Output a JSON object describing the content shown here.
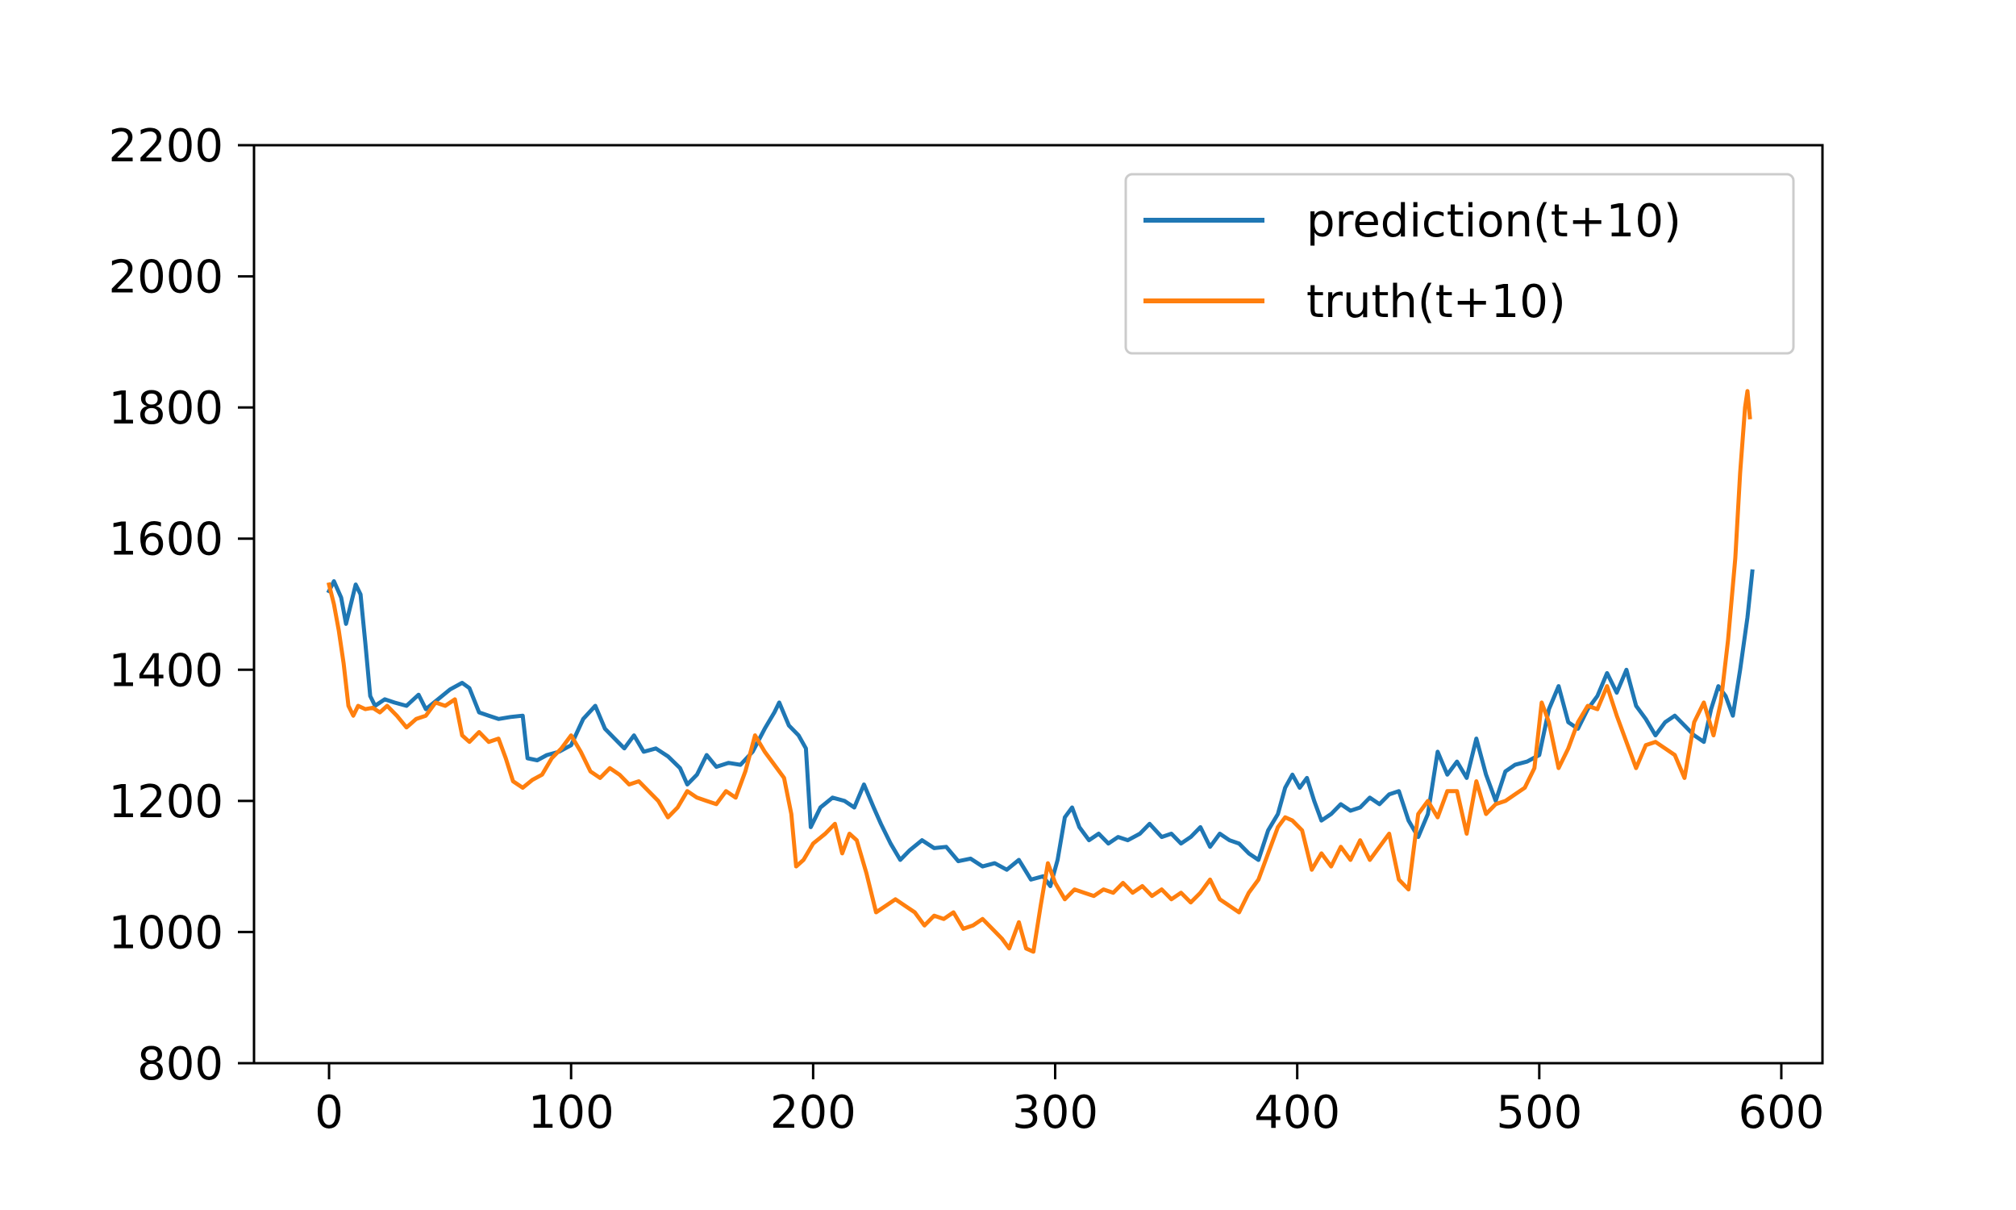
{
  "chart_data": {
    "type": "line",
    "title": "",
    "xlabel": "",
    "ylabel": "",
    "xlim": [
      -31,
      617
    ],
    "ylim": [
      800,
      2200
    ],
    "x_ticks": [
      0,
      100,
      200,
      300,
      400,
      500,
      600
    ],
    "y_ticks": [
      800,
      1000,
      1200,
      1400,
      1600,
      1800,
      2000,
      2200
    ],
    "x_tick_labels": [
      "0",
      "100",
      "200",
      "300",
      "400",
      "500",
      "600"
    ],
    "y_tick_labels": [
      "800",
      "1000",
      "1200",
      "1400",
      "1600",
      "1800",
      "2000",
      "2200"
    ],
    "grid": false,
    "legend_position": "top-right",
    "series": [
      {
        "name": "prediction(t+10)",
        "color": "#1f77b4",
        "points": [
          [
            0,
            1520
          ],
          [
            2,
            1535
          ],
          [
            5,
            1510
          ],
          [
            7,
            1470
          ],
          [
            9,
            1500
          ],
          [
            11,
            1530
          ],
          [
            13,
            1515
          ],
          [
            15,
            1440
          ],
          [
            17,
            1360
          ],
          [
            19,
            1345
          ],
          [
            23,
            1355
          ],
          [
            27,
            1350
          ],
          [
            32,
            1345
          ],
          [
            37,
            1362
          ],
          [
            40,
            1340
          ],
          [
            45,
            1355
          ],
          [
            50,
            1370
          ],
          [
            55,
            1380
          ],
          [
            58,
            1372
          ],
          [
            62,
            1335
          ],
          [
            66,
            1330
          ],
          [
            70,
            1325
          ],
          [
            75,
            1328
          ],
          [
            80,
            1330
          ],
          [
            82,
            1265
          ],
          [
            86,
            1262
          ],
          [
            90,
            1270
          ],
          [
            95,
            1275
          ],
          [
            100,
            1285
          ],
          [
            105,
            1325
          ],
          [
            110,
            1345
          ],
          [
            114,
            1310
          ],
          [
            118,
            1295
          ],
          [
            122,
            1280
          ],
          [
            126,
            1300
          ],
          [
            130,
            1275
          ],
          [
            135,
            1280
          ],
          [
            140,
            1268
          ],
          [
            145,
            1250
          ],
          [
            148,
            1225
          ],
          [
            152,
            1240
          ],
          [
            156,
            1270
          ],
          [
            160,
            1252
          ],
          [
            165,
            1258
          ],
          [
            170,
            1255
          ],
          [
            175,
            1275
          ],
          [
            180,
            1310
          ],
          [
            184,
            1335
          ],
          [
            186,
            1350
          ],
          [
            190,
            1315
          ],
          [
            194,
            1300
          ],
          [
            197,
            1280
          ],
          [
            199,
            1160
          ],
          [
            203,
            1190
          ],
          [
            208,
            1205
          ],
          [
            213,
            1200
          ],
          [
            217,
            1190
          ],
          [
            221,
            1225
          ],
          [
            225,
            1190
          ],
          [
            228,
            1165
          ],
          [
            232,
            1135
          ],
          [
            236,
            1110
          ],
          [
            240,
            1125
          ],
          [
            245,
            1140
          ],
          [
            250,
            1128
          ],
          [
            255,
            1130
          ],
          [
            260,
            1108
          ],
          [
            265,
            1112
          ],
          [
            270,
            1100
          ],
          [
            275,
            1105
          ],
          [
            280,
            1095
          ],
          [
            285,
            1110
          ],
          [
            290,
            1080
          ],
          [
            295,
            1085
          ],
          [
            298,
            1070
          ],
          [
            301,
            1110
          ],
          [
            304,
            1175
          ],
          [
            307,
            1190
          ],
          [
            310,
            1160
          ],
          [
            314,
            1140
          ],
          [
            318,
            1150
          ],
          [
            322,
            1135
          ],
          [
            326,
            1145
          ],
          [
            330,
            1140
          ],
          [
            335,
            1150
          ],
          [
            339,
            1165
          ],
          [
            344,
            1145
          ],
          [
            348,
            1150
          ],
          [
            352,
            1135
          ],
          [
            356,
            1145
          ],
          [
            360,
            1160
          ],
          [
            364,
            1130
          ],
          [
            368,
            1150
          ],
          [
            372,
            1140
          ],
          [
            376,
            1135
          ],
          [
            380,
            1120
          ],
          [
            384,
            1110
          ],
          [
            388,
            1155
          ],
          [
            392,
            1180
          ],
          [
            395,
            1220
          ],
          [
            398,
            1240
          ],
          [
            401,
            1220
          ],
          [
            404,
            1235
          ],
          [
            407,
            1200
          ],
          [
            410,
            1170
          ],
          [
            414,
            1180
          ],
          [
            418,
            1195
          ],
          [
            422,
            1185
          ],
          [
            426,
            1190
          ],
          [
            430,
            1205
          ],
          [
            434,
            1195
          ],
          [
            438,
            1210
          ],
          [
            442,
            1215
          ],
          [
            446,
            1170
          ],
          [
            450,
            1145
          ],
          [
            454,
            1180
          ],
          [
            458,
            1275
          ],
          [
            462,
            1240
          ],
          [
            466,
            1260
          ],
          [
            470,
            1235
          ],
          [
            474,
            1295
          ],
          [
            478,
            1240
          ],
          [
            482,
            1200
          ],
          [
            486,
            1245
          ],
          [
            490,
            1255
          ],
          [
            495,
            1260
          ],
          [
            500,
            1270
          ],
          [
            504,
            1340
          ],
          [
            508,
            1375
          ],
          [
            512,
            1320
          ],
          [
            516,
            1310
          ],
          [
            520,
            1340
          ],
          [
            524,
            1360
          ],
          [
            528,
            1395
          ],
          [
            532,
            1365
          ],
          [
            536,
            1400
          ],
          [
            540,
            1345
          ],
          [
            544,
            1325
          ],
          [
            548,
            1300
          ],
          [
            552,
            1320
          ],
          [
            556,
            1330
          ],
          [
            560,
            1315
          ],
          [
            564,
            1300
          ],
          [
            568,
            1290
          ],
          [
            571,
            1340
          ],
          [
            574,
            1375
          ],
          [
            577,
            1360
          ],
          [
            580,
            1330
          ],
          [
            583,
            1400
          ],
          [
            586,
            1480
          ],
          [
            588,
            1550
          ]
        ]
      },
      {
        "name": "truth(t+10)",
        "color": "#ff7f0e",
        "points": [
          [
            0,
            1530
          ],
          [
            2,
            1500
          ],
          [
            4,
            1460
          ],
          [
            6,
            1410
          ],
          [
            8,
            1345
          ],
          [
            10,
            1330
          ],
          [
            12,
            1345
          ],
          [
            15,
            1340
          ],
          [
            18,
            1342
          ],
          [
            21,
            1335
          ],
          [
            24,
            1345
          ],
          [
            28,
            1330
          ],
          [
            32,
            1312
          ],
          [
            36,
            1325
          ],
          [
            40,
            1330
          ],
          [
            44,
            1350
          ],
          [
            48,
            1345
          ],
          [
            52,
            1355
          ],
          [
            55,
            1300
          ],
          [
            58,
            1290
          ],
          [
            62,
            1305
          ],
          [
            66,
            1290
          ],
          [
            70,
            1295
          ],
          [
            73,
            1265
          ],
          [
            76,
            1230
          ],
          [
            80,
            1220
          ],
          [
            84,
            1232
          ],
          [
            88,
            1240
          ],
          [
            92,
            1265
          ],
          [
            96,
            1280
          ],
          [
            100,
            1300
          ],
          [
            104,
            1275
          ],
          [
            108,
            1245
          ],
          [
            112,
            1235
          ],
          [
            116,
            1250
          ],
          [
            120,
            1240
          ],
          [
            124,
            1225
          ],
          [
            128,
            1230
          ],
          [
            132,
            1215
          ],
          [
            136,
            1200
          ],
          [
            140,
            1175
          ],
          [
            144,
            1190
          ],
          [
            148,
            1215
          ],
          [
            152,
            1205
          ],
          [
            156,
            1200
          ],
          [
            160,
            1195
          ],
          [
            164,
            1215
          ],
          [
            168,
            1205
          ],
          [
            172,
            1245
          ],
          [
            176,
            1300
          ],
          [
            180,
            1275
          ],
          [
            184,
            1255
          ],
          [
            188,
            1235
          ],
          [
            191,
            1180
          ],
          [
            193,
            1100
          ],
          [
            196,
            1110
          ],
          [
            200,
            1135
          ],
          [
            205,
            1150
          ],
          [
            209,
            1165
          ],
          [
            212,
            1120
          ],
          [
            215,
            1150
          ],
          [
            218,
            1140
          ],
          [
            222,
            1090
          ],
          [
            226,
            1030
          ],
          [
            230,
            1040
          ],
          [
            234,
            1050
          ],
          [
            238,
            1040
          ],
          [
            242,
            1030
          ],
          [
            246,
            1010
          ],
          [
            250,
            1025
          ],
          [
            254,
            1020
          ],
          [
            258,
            1030
          ],
          [
            262,
            1005
          ],
          [
            266,
            1010
          ],
          [
            270,
            1020
          ],
          [
            274,
            1005
          ],
          [
            278,
            990
          ],
          [
            281,
            975
          ],
          [
            285,
            1015
          ],
          [
            288,
            975
          ],
          [
            291,
            970
          ],
          [
            294,
            1040
          ],
          [
            297,
            1105
          ],
          [
            300,
            1075
          ],
          [
            304,
            1050
          ],
          [
            308,
            1065
          ],
          [
            312,
            1060
          ],
          [
            316,
            1055
          ],
          [
            320,
            1065
          ],
          [
            324,
            1060
          ],
          [
            328,
            1075
          ],
          [
            332,
            1060
          ],
          [
            336,
            1070
          ],
          [
            340,
            1055
          ],
          [
            344,
            1065
          ],
          [
            348,
            1050
          ],
          [
            352,
            1060
          ],
          [
            356,
            1045
          ],
          [
            360,
            1060
          ],
          [
            364,
            1080
          ],
          [
            368,
            1050
          ],
          [
            372,
            1040
          ],
          [
            376,
            1030
          ],
          [
            380,
            1060
          ],
          [
            384,
            1080
          ],
          [
            388,
            1120
          ],
          [
            392,
            1160
          ],
          [
            395,
            1175
          ],
          [
            398,
            1170
          ],
          [
            402,
            1155
          ],
          [
            406,
            1095
          ],
          [
            410,
            1120
          ],
          [
            414,
            1100
          ],
          [
            418,
            1130
          ],
          [
            422,
            1110
          ],
          [
            426,
            1140
          ],
          [
            430,
            1110
          ],
          [
            434,
            1130
          ],
          [
            438,
            1150
          ],
          [
            442,
            1080
          ],
          [
            446,
            1065
          ],
          [
            450,
            1180
          ],
          [
            454,
            1200
          ],
          [
            458,
            1175
          ],
          [
            462,
            1215
          ],
          [
            466,
            1215
          ],
          [
            470,
            1150
          ],
          [
            474,
            1230
          ],
          [
            478,
            1180
          ],
          [
            482,
            1195
          ],
          [
            486,
            1200
          ],
          [
            490,
            1210
          ],
          [
            494,
            1220
          ],
          [
            498,
            1250
          ],
          [
            501,
            1350
          ],
          [
            504,
            1320
          ],
          [
            508,
            1250
          ],
          [
            512,
            1280
          ],
          [
            516,
            1320
          ],
          [
            520,
            1345
          ],
          [
            524,
            1340
          ],
          [
            528,
            1375
          ],
          [
            532,
            1330
          ],
          [
            536,
            1290
          ],
          [
            540,
            1250
          ],
          [
            544,
            1285
          ],
          [
            548,
            1290
          ],
          [
            552,
            1280
          ],
          [
            556,
            1270
          ],
          [
            560,
            1235
          ],
          [
            564,
            1320
          ],
          [
            568,
            1350
          ],
          [
            572,
            1300
          ],
          [
            575,
            1350
          ],
          [
            578,
            1445
          ],
          [
            581,
            1570
          ],
          [
            583,
            1700
          ],
          [
            585,
            1800
          ],
          [
            586,
            1825
          ],
          [
            587,
            1785
          ]
        ]
      }
    ]
  }
}
